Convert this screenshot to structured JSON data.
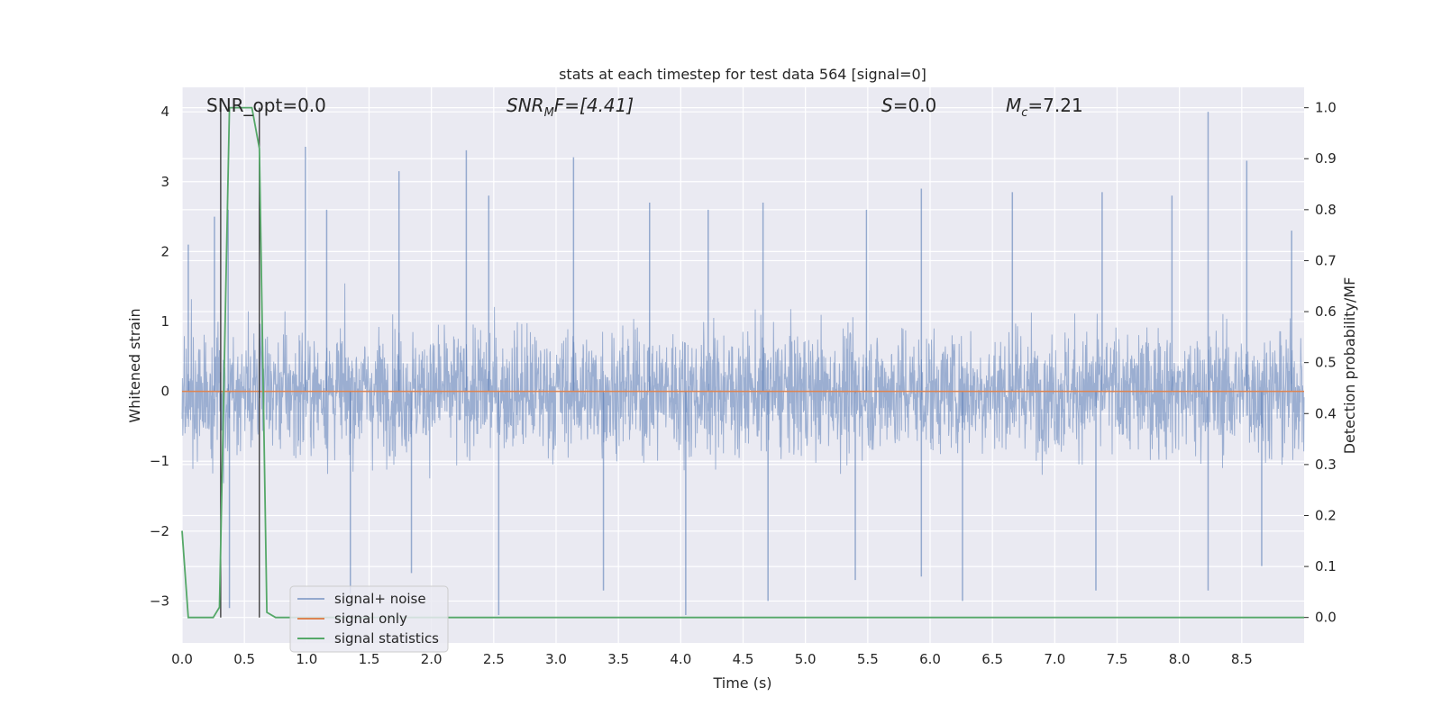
{
  "chart_data": {
    "type": "line",
    "title": "stats at each timestep for test data 564 [signal=0]",
    "xlabel": "Time (s)",
    "ylabel_left": "Whitened strain",
    "ylabel_right": "Detection probability/MF",
    "xlim": [
      0.0,
      9.0
    ],
    "ylim_left": [
      -3.6,
      4.35
    ],
    "ylim_right": [
      -0.05,
      1.04
    ],
    "x_ticks": [
      "0.0",
      "0.5",
      "1.0",
      "1.5",
      "2.0",
      "2.5",
      "3.0",
      "3.5",
      "4.0",
      "4.5",
      "5.0",
      "5.5",
      "6.0",
      "6.5",
      "7.0",
      "7.5",
      "8.0",
      "8.5"
    ],
    "y_left_ticks": [
      "−3",
      "−2",
      "−1",
      "0",
      "1",
      "2",
      "3",
      "4"
    ],
    "y_right_ticks": [
      "0.0",
      "0.1",
      "0.2",
      "0.3",
      "0.4",
      "0.5",
      "0.6",
      "0.7",
      "0.8",
      "0.9",
      "1.0"
    ],
    "grid": true,
    "legend_position": "lower-left",
    "annotations": {
      "snr_opt": "SNR_opt=0.0",
      "snr_mf_prefix": "SNR",
      "snr_mf_sub": "M",
      "snr_mf_suffix": "F=[4.41]",
      "s_italic": "S",
      "s_value": "=0.0",
      "mc_italic": "M",
      "mc_sub": "c",
      "mc_value": "=7.21"
    },
    "series": [
      {
        "name": "signal+ noise",
        "color": "#4c72b0",
        "description_values": "dense noise band",
        "envelope_peaks": [
          [
            0.05,
            2.1
          ],
          [
            0.26,
            2.5
          ],
          [
            0.37,
            2.6
          ],
          [
            0.99,
            3.5
          ],
          [
            1.16,
            2.6
          ],
          [
            1.74,
            3.15
          ],
          [
            2.28,
            3.45
          ],
          [
            2.46,
            2.8
          ],
          [
            3.14,
            3.35
          ],
          [
            3.75,
            2.7
          ],
          [
            4.22,
            2.6
          ],
          [
            4.66,
            2.7
          ],
          [
            5.49,
            2.6
          ],
          [
            5.93,
            2.9
          ],
          [
            6.66,
            2.85
          ],
          [
            7.38,
            2.85
          ],
          [
            7.94,
            2.8
          ],
          [
            8.23,
            4.0
          ],
          [
            8.54,
            3.3
          ],
          [
            8.9,
            2.3
          ]
        ],
        "envelope_troughs": [
          [
            0.38,
            -3.1
          ],
          [
            1.35,
            -2.9
          ],
          [
            1.84,
            -2.6
          ],
          [
            2.54,
            -3.2
          ],
          [
            3.38,
            -2.85
          ],
          [
            4.04,
            -3.2
          ],
          [
            4.7,
            -3.0
          ],
          [
            5.4,
            -2.7
          ],
          [
            5.93,
            -2.65
          ],
          [
            6.26,
            -3.0
          ],
          [
            7.33,
            -2.85
          ],
          [
            8.23,
            -2.85
          ],
          [
            8.66,
            -2.5
          ]
        ]
      },
      {
        "name": "signal only",
        "color": "#dd8452",
        "x": [
          0.0,
          9.0
        ],
        "y": [
          0.0,
          0.0
        ]
      },
      {
        "name": "signal statistics",
        "color": "#55a868",
        "axis": "right",
        "x": [
          0.0,
          0.05,
          0.1,
          0.25,
          0.3,
          0.38,
          0.42,
          0.56,
          0.62,
          0.68,
          0.75,
          9.0
        ],
        "y": [
          0.17,
          0.0,
          0.0,
          0.0,
          0.02,
          1.0,
          1.0,
          1.0,
          0.92,
          0.01,
          0.0,
          0.0
        ]
      }
    ],
    "vertical_markers_x": [
      0.31,
      0.62
    ],
    "vertical_markers_color": "#333333"
  }
}
